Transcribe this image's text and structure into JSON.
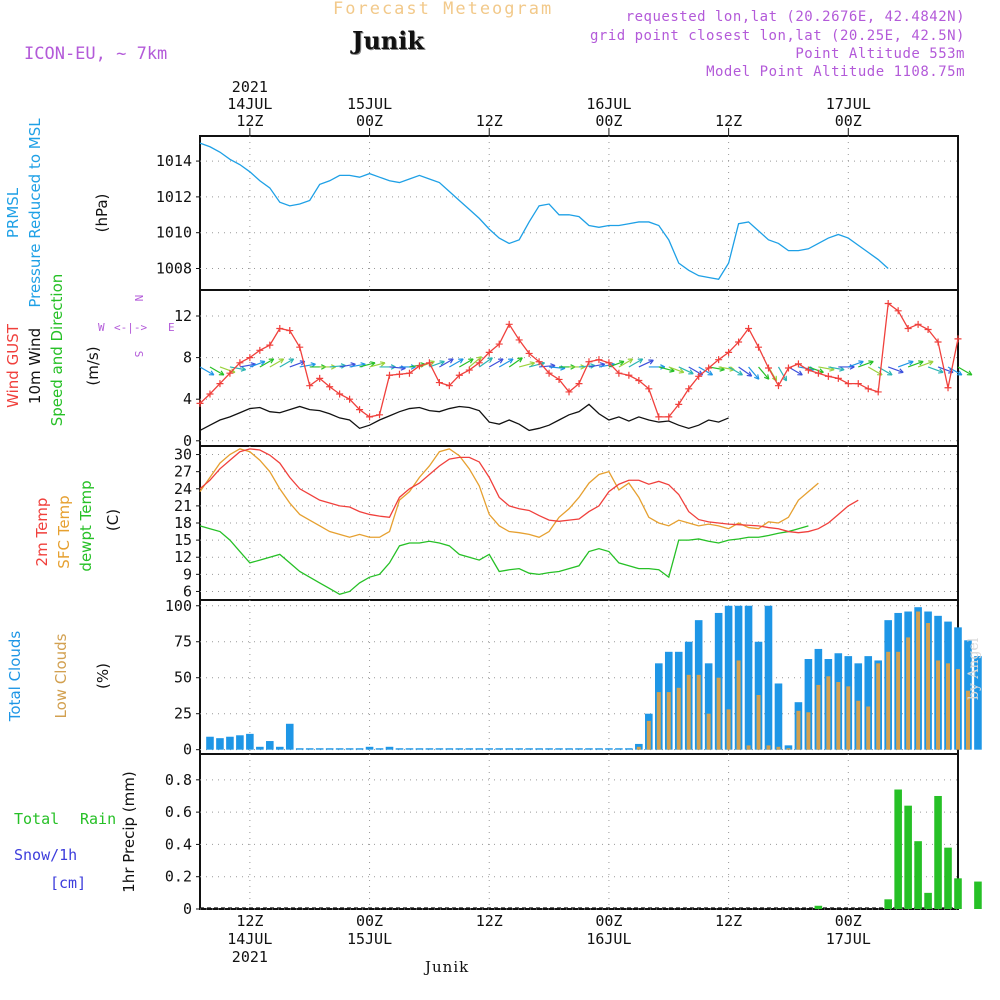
{
  "header": {
    "title": "Forecast Meteogram",
    "location": "Junik",
    "model": "ICON-EU, ~ 7km",
    "requested": "requested lon,lat (20.2676E, 42.4842N)",
    "grid": "grid point closest lon,lat (20.25E, 42.5N)",
    "point_alt": "Point Altitude 553m",
    "model_alt": "Model Point Altitude 1108.75m"
  },
  "footer": {
    "location": "Junik",
    "byline": "by Angel"
  },
  "colors": {
    "pressure": "#1ea0e6",
    "gust": "#f0403c",
    "wind": "#111111",
    "wind_dir": "#26c026",
    "temp2m": "#f0403c",
    "sfc": "#e6a030",
    "dew": "#26c026",
    "total_clouds": "#1e96e6",
    "low_clouds": "#d2a050",
    "rain": "#26c026",
    "snow": "#3c3cdc",
    "compass": "#b35ad9",
    "grid": "#999999"
  },
  "time_axis": {
    "top_labels": [
      {
        "h": 12,
        "lines": [
          "2021",
          "14JUL",
          "12Z"
        ]
      },
      {
        "h": 24,
        "lines": [
          "15JUL",
          "00Z"
        ]
      },
      {
        "h": 36,
        "lines": [
          "12Z"
        ]
      },
      {
        "h": 48,
        "lines": [
          "16JUL",
          "00Z"
        ]
      },
      {
        "h": 60,
        "lines": [
          "12Z"
        ]
      },
      {
        "h": 72,
        "lines": [
          "17JUL",
          "00Z"
        ]
      }
    ],
    "bottom_labels": [
      {
        "h": 12,
        "lines": [
          "12Z",
          "14JUL",
          "2021"
        ]
      },
      {
        "h": 24,
        "lines": [
          "00Z",
          "15JUL"
        ]
      },
      {
        "h": 36,
        "lines": [
          "12Z"
        ]
      },
      {
        "h": 48,
        "lines": [
          "00Z",
          "16JUL"
        ]
      },
      {
        "h": 60,
        "lines": [
          "12Z"
        ]
      },
      {
        "h": 72,
        "lines": [
          "00Z",
          "17JUL"
        ]
      }
    ],
    "hour_range": [
      7,
      83
    ]
  },
  "chart_data": [
    {
      "type": "line",
      "id": "pressure",
      "title": "PRMSL Pressure Reduced to MSL",
      "label_lines": [
        "PRMSL",
        "Pressure Reduced to MSL"
      ],
      "unit": "(hPa)",
      "ylim": [
        1006.8,
        1015.4
      ],
      "yticks": [
        1008,
        1010,
        1012,
        1014
      ],
      "x_hours_start": 7,
      "series": [
        {
          "name": "PRMSL",
          "values": [
            1015.0,
            1014.8,
            1014.5,
            1014.1,
            1013.8,
            1013.4,
            1012.9,
            1012.5,
            1011.7,
            1011.5,
            1011.6,
            1011.8,
            1012.7,
            1012.9,
            1013.2,
            1013.2,
            1013.1,
            1013.3,
            1013.1,
            1012.9,
            1012.8,
            1013.0,
            1013.2,
            1013.0,
            1012.8,
            1012.3,
            1011.8,
            1011.3,
            1010.8,
            1010.2,
            1009.7,
            1009.4,
            1009.6,
            1010.6,
            1011.5,
            1011.6,
            1011.0,
            1011.0,
            1010.9,
            1010.4,
            1010.3,
            1010.4,
            1010.4,
            1010.5,
            1010.6,
            1010.6,
            1010.4,
            1009.6,
            1008.3,
            1007.9,
            1007.6,
            1007.5,
            1007.4,
            1008.3,
            1010.5,
            1010.6,
            1010.1,
            1009.6,
            1009.4,
            1009.0,
            1009.0,
            1009.1,
            1009.4,
            1009.7,
            1009.9,
            1009.7,
            1009.3,
            1008.9,
            1008.5,
            1008.0
          ]
        }
      ]
    },
    {
      "type": "line",
      "id": "wind",
      "title": "Wind GUST / 10m Wind Speed and Direction",
      "label_lines": [
        "Wind GUST",
        "10m Wind",
        "Speed and Direction"
      ],
      "unit": "(m/s)",
      "compass": {
        "n": "N",
        "s": "S",
        "w": "W",
        "e": "E"
      },
      "ylim": [
        -0.5,
        14.5
      ],
      "yticks": [
        0,
        4,
        8,
        12
      ],
      "x_hours_start": 7,
      "series": [
        {
          "name": "Wind GUST",
          "values": [
            3.6,
            4.5,
            5.5,
            6.5,
            7.5,
            8.0,
            8.7,
            9.2,
            10.8,
            10.6,
            9.0,
            5.3,
            6.0,
            5.2,
            4.5,
            4.0,
            3.0,
            2.3,
            2.5,
            6.3,
            6.4,
            6.5,
            7.2,
            7.5,
            5.6,
            5.3,
            6.3,
            6.8,
            7.5,
            8.5,
            9.3,
            11.2,
            9.7,
            8.4,
            7.6,
            6.5,
            5.9,
            4.7,
            5.5,
            7.6,
            7.8,
            7.5,
            6.5,
            6.3,
            5.8,
            5.0,
            2.3,
            2.3,
            3.5,
            5.0,
            6.2,
            7.0,
            7.8,
            8.5,
            9.5,
            10.8,
            9.0,
            7.0,
            5.3,
            7.0,
            7.4,
            6.8,
            6.5,
            6.2,
            6.0,
            5.5,
            5.5,
            5.0,
            4.7,
            13.2,
            12.5,
            10.8,
            11.2,
            10.7,
            9.5,
            5.1,
            9.8
          ]
        },
        {
          "name": "10m Wind",
          "values": [
            1.0,
            1.5,
            2.0,
            2.3,
            2.7,
            3.1,
            3.2,
            2.8,
            2.7,
            3.0,
            3.3,
            3.0,
            2.9,
            2.6,
            2.2,
            2.0,
            1.2,
            1.5,
            2.0,
            2.4,
            2.8,
            3.1,
            3.2,
            2.9,
            2.8,
            3.1,
            3.3,
            3.2,
            2.9,
            1.8,
            1.6,
            2.0,
            1.6,
            1.0,
            1.2,
            1.5,
            2.0,
            2.5,
            2.8,
            3.5,
            2.6,
            2.0,
            2.3,
            1.9,
            2.3,
            2.0,
            1.8,
            1.9,
            1.5,
            1.2,
            1.5,
            2.0,
            1.8,
            2.2
          ]
        },
        {
          "name": "Wind direction (deg)",
          "values": [
            300,
            300,
            290,
            280,
            260,
            250,
            240,
            240,
            240,
            250,
            260,
            270,
            270,
            265,
            260,
            260,
            255,
            255,
            270,
            275,
            270,
            260,
            250,
            250,
            240,
            240,
            240,
            230,
            235,
            240,
            240,
            235,
            255,
            255,
            265,
            275,
            270,
            270,
            265,
            260,
            260,
            250,
            240,
            240,
            245,
            270,
            285,
            290,
            295,
            300,
            300,
            280,
            280,
            300,
            305,
            320,
            320,
            330,
            330,
            300,
            280,
            290,
            280,
            280,
            270,
            250,
            250,
            300,
            300,
            290,
            250,
            250,
            250,
            290,
            290,
            300,
            300
          ]
        }
      ]
    },
    {
      "type": "line",
      "id": "temperature",
      "title": "2m Temp / SFC Temp / dewpt Temp",
      "label_lines": [
        "2m Temp",
        "SFC Temp",
        "dewpt Temp"
      ],
      "unit": "(C)",
      "ylim": [
        4.5,
        31.5
      ],
      "yticks": [
        6,
        9,
        12,
        15,
        18,
        21,
        24,
        27,
        30
      ],
      "x_hours_start": 7,
      "series": [
        {
          "name": "2m Temp",
          "values": [
            24.0,
            25.5,
            27.5,
            29.0,
            30.5,
            31.0,
            30.8,
            29.9,
            28.5,
            26.0,
            24.0,
            23.0,
            22.0,
            21.5,
            21.0,
            20.8,
            20.0,
            19.5,
            19.2,
            19.0,
            22.5,
            24.0,
            25.0,
            26.5,
            28.0,
            29.2,
            29.5,
            29.5,
            28.7,
            26.0,
            22.5,
            21.0,
            20.5,
            20.2,
            19.3,
            18.5,
            18.3,
            18.5,
            18.7,
            20.0,
            21.0,
            23.5,
            24.8,
            25.5,
            25.5,
            24.8,
            25.3,
            24.7,
            23.0,
            20.0,
            18.6,
            18.2,
            18.0,
            17.8,
            17.7,
            17.6,
            17.5,
            17.2,
            17.0,
            16.5,
            16.3,
            16.5,
            17.0,
            18.0,
            19.5,
            21.0,
            22.0
          ]
        },
        {
          "name": "SFC Temp",
          "values": [
            23.5,
            26.0,
            28.5,
            30.0,
            31.0,
            30.5,
            29.0,
            27.0,
            24.0,
            21.5,
            19.5,
            18.5,
            17.5,
            16.5,
            16.0,
            15.5,
            16.0,
            15.5,
            15.5,
            16.5,
            22.0,
            23.5,
            26.0,
            28.0,
            30.5,
            31.0,
            29.8,
            27.5,
            24.5,
            19.5,
            17.5,
            16.5,
            16.3,
            16.0,
            15.5,
            16.5,
            19.0,
            20.5,
            22.5,
            25.0,
            26.5,
            27.0,
            23.8,
            25.0,
            22.5,
            19.0,
            18.0,
            17.5,
            18.5,
            18.0,
            17.5,
            17.8,
            17.5,
            17.0,
            18.0,
            17.2,
            17.0,
            18.2,
            18.0,
            19.0,
            22.0,
            23.5,
            25.0
          ]
        },
        {
          "name": "dewpt Temp",
          "values": [
            17.5,
            17.0,
            16.5,
            15.0,
            13.0,
            11.0,
            11.5,
            12.0,
            12.5,
            11.0,
            9.5,
            8.5,
            7.5,
            6.5,
            5.5,
            6.0,
            7.5,
            8.5,
            9.0,
            11.0,
            14.0,
            14.5,
            14.5,
            14.8,
            14.5,
            14.0,
            12.5,
            12.0,
            11.5,
            12.5,
            9.5,
            9.8,
            10.0,
            9.2,
            9.0,
            9.3,
            9.5,
            10.0,
            10.5,
            13.0,
            13.5,
            13.0,
            11.0,
            10.5,
            10.0,
            10.0,
            9.8,
            8.5,
            15.0,
            15.0,
            15.2,
            14.8,
            14.5,
            15.0,
            15.2,
            15.5,
            15.5,
            15.8,
            16.2,
            16.5,
            17.0,
            17.5
          ]
        }
      ]
    },
    {
      "type": "bar",
      "id": "clouds",
      "title": "Total Clouds / Low Clouds",
      "label_lines": [
        "Total Clouds",
        "Low Clouds"
      ],
      "unit": "(%)",
      "ylim": [
        -3,
        104
      ],
      "yticks": [
        0,
        25,
        50,
        75,
        100
      ],
      "x_hours_start": 8,
      "series": [
        {
          "name": "Total Clouds",
          "values": [
            9,
            8,
            9,
            10,
            11,
            2,
            6,
            2,
            18,
            1,
            1,
            1,
            1,
            1,
            1,
            1,
            2,
            1,
            2,
            1,
            1,
            1,
            1,
            1,
            1,
            1,
            1,
            1,
            1,
            1,
            1,
            1,
            1,
            1,
            1,
            1,
            1,
            1,
            1,
            1,
            1,
            1,
            1,
            4,
            25,
            60,
            68,
            68,
            75,
            90,
            60,
            95,
            100,
            100,
            100,
            75,
            100,
            46,
            3,
            33,
            63,
            70,
            63,
            67,
            65,
            60,
            65,
            62,
            90,
            95,
            96,
            99,
            96,
            93,
            89,
            85,
            76,
            65
          ]
        },
        {
          "name": "Low Clouds",
          "values": [
            0,
            0,
            0,
            0,
            0,
            0,
            0,
            0,
            0,
            0,
            0,
            0,
            0,
            0,
            0,
            0,
            0,
            0,
            0,
            0,
            0,
            0,
            0,
            0,
            0,
            0,
            0,
            0,
            0,
            0,
            0,
            0,
            0,
            0,
            0,
            0,
            0,
            0,
            0,
            0,
            0,
            0,
            0,
            2,
            20,
            40,
            40,
            43,
            52,
            52,
            25,
            50,
            28,
            62,
            3,
            38,
            3,
            2,
            1,
            27,
            26,
            45,
            51,
            47,
            44,
            34,
            30,
            60,
            68,
            68,
            78,
            96,
            88,
            62,
            60,
            56,
            41
          ]
        }
      ]
    },
    {
      "type": "bar",
      "id": "precip",
      "title": "1hr Precip (mm)",
      "label_lines": [
        "Total",
        "Rain",
        "Snow/1h",
        "[cm]"
      ],
      "unit": "1hr Precip (mm)",
      "ylim": [
        0,
        0.96
      ],
      "yticks": [
        0,
        0.2,
        0.4,
        0.6,
        0.8
      ],
      "ytick_labels": [
        "0",
        "0.2",
        "0.4",
        "0.6",
        "0.8"
      ],
      "x_hours_start": 8,
      "series": [
        {
          "name": "Total Rain",
          "values": [
            0,
            0,
            0,
            0,
            0,
            0,
            0,
            0,
            0,
            0,
            0,
            0,
            0,
            0,
            0,
            0,
            0,
            0,
            0,
            0,
            0,
            0,
            0,
            0,
            0,
            0,
            0,
            0,
            0,
            0,
            0,
            0,
            0,
            0,
            0,
            0,
            0,
            0,
            0,
            0,
            0,
            0,
            0,
            0,
            0,
            0,
            0,
            0,
            0,
            0,
            0,
            0,
            0,
            0,
            0,
            0,
            0,
            0,
            0,
            0,
            0,
            0.02,
            0,
            0,
            0,
            0,
            0,
            0,
            0.06,
            0.74,
            0.64,
            0.42,
            0.1,
            0.7,
            0.38,
            0.19,
            0,
            0.17
          ]
        },
        {
          "name": "Snow/1h",
          "values": []
        }
      ]
    }
  ]
}
